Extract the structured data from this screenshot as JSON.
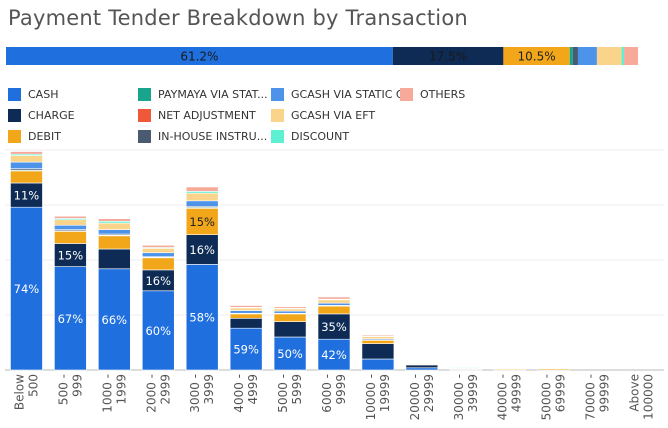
{
  "title": "Payment Tender Breakdown by Transaction",
  "colors": {
    "CASH": "#1f6fde",
    "CHARGE": "#0d2b55",
    "DEBIT": "#f2a71b",
    "PAYMAYA VIA STAT...": "#18a58c",
    "NET ADJUSTMENT": "#f0583a",
    "IN-HOUSE INSTRU...": "#4a5a70",
    "GCASH VIA STATIC QR": "#4e93ea",
    "GCASH VIA EFT": "#fad48a",
    "DISCOUNT": "#5ef0d2",
    "OTHERS": "#f7a99a"
  },
  "legend": {
    "columns": [
      [
        "CASH",
        "CHARGE",
        "DEBIT"
      ],
      [
        "PAYMAYA VIA STAT...",
        "NET ADJUSTMENT",
        "IN-HOUSE INSTRU..."
      ],
      [
        "GCASH VIA STATIC QR",
        "GCASH VIA EFT",
        "DISCOUNT"
      ],
      [
        "OTHERS"
      ]
    ]
  },
  "chart_data": [
    {
      "type": "bar",
      "orientation": "horizontal-stacked-100",
      "series": [
        {
          "name": "CASH",
          "value": 61.2,
          "label": "61.2%"
        },
        {
          "name": "CHARGE",
          "value": 17.5,
          "label": "17.5%"
        },
        {
          "name": "DEBIT",
          "value": 10.5,
          "label": "10.5%"
        },
        {
          "name": "PAYMAYA VIA STAT...",
          "value": 0.5,
          "label": ""
        },
        {
          "name": "IN-HOUSE INSTRU...",
          "value": 0.8,
          "label": ""
        },
        {
          "name": "GCASH VIA STATIC QR",
          "value": 3.0,
          "label": ""
        },
        {
          "name": "GCASH VIA EFT",
          "value": 3.9,
          "label": ""
        },
        {
          "name": "DISCOUNT",
          "value": 0.4,
          "label": ""
        },
        {
          "name": "OTHERS",
          "value": 2.2,
          "label": ""
        }
      ]
    },
    {
      "type": "bar",
      "stacked": true,
      "categories": [
        "Below 500",
        "500 - 999",
        "1000 - 1999",
        "2000 - 2999",
        "3000 - 3999",
        "4000 - 4999",
        "5000 - 5999",
        "6000 - 9999",
        "10000 - 19999",
        "20000 - 29999",
        "30000 - 39999",
        "40000 - 49999",
        "50000 - 69999",
        "70000 - 99999",
        "Above 100000"
      ],
      "tick_labels": [
        [
          "Below",
          "500"
        ],
        [
          "500 -",
          "999"
        ],
        [
          "1000 -",
          "1999"
        ],
        [
          "2000 -",
          "2999"
        ],
        [
          "3000 -",
          "3999"
        ],
        [
          "4000 -",
          "4999"
        ],
        [
          "5000 -",
          "5999"
        ],
        [
          "6000 -",
          "9999"
        ],
        [
          "10000 -",
          "19999"
        ],
        [
          "20000 -",
          "29999"
        ],
        [
          "30000 -",
          "39999"
        ],
        [
          "40000 -",
          "49999"
        ],
        [
          "50000 -",
          "69999"
        ],
        [
          "70000 -",
          "99999"
        ],
        [
          "Above",
          "100000"
        ]
      ],
      "ylim": [
        0,
        100
      ],
      "grid": true,
      "series": [
        {
          "name": "CASH",
          "values": [
            74,
            47,
            46,
            36,
            48,
            19,
            15,
            14,
            5,
            1,
            0,
            0,
            0,
            0,
            0
          ],
          "labels": [
            "74%",
            "67%",
            "66%",
            "60%",
            "58%",
            "59%",
            "50%",
            "42%",
            "",
            "",
            "",
            "",
            "",
            "",
            ""
          ]
        },
        {
          "name": "CHARGE",
          "values": [
            11,
            10.5,
            9,
            9.5,
            13.5,
            4.5,
            7,
            11.5,
            7,
            1.3,
            0.3,
            0,
            0,
            0,
            0
          ],
          "labels": [
            "11%",
            "15%",
            "",
            "16%",
            "16%",
            "",
            "",
            "35%",
            "",
            "",
            "",
            "",
            "",
            "",
            ""
          ]
        },
        {
          "name": "DEBIT",
          "values": [
            5.5,
            5.5,
            6,
            5.5,
            12,
            2,
            3.5,
            3.5,
            1.5,
            0.3,
            0.3,
            0.4,
            0.5,
            0,
            0
          ],
          "labels": [
            "",
            "",
            "",
            "",
            "15%",
            "",
            "",
            "",
            "",
            "",
            "",
            "",
            "",
            "",
            ""
          ]
        },
        {
          "name": "PAYMAYA VIA STAT...",
          "values": [
            0.4,
            0.3,
            0.3,
            0.2,
            0.4,
            0.1,
            0.1,
            0.1,
            0,
            0,
            0.3,
            0,
            0,
            0,
            0
          ],
          "labels": []
        },
        {
          "name": "IN-HOUSE INSTRU...",
          "values": [
            0.6,
            0.5,
            0.5,
            0.3,
            0.5,
            0.2,
            0.2,
            0.3,
            0.2,
            0.1,
            0,
            0,
            0,
            0,
            0
          ],
          "labels": []
        },
        {
          "name": "GCASH VIA STATIC QR",
          "values": [
            3,
            2,
            2,
            1.8,
            2.5,
            1.2,
            1,
            1,
            0.5,
            0,
            0,
            0,
            0,
            0,
            0
          ],
          "labels": []
        },
        {
          "name": "GCASH VIA EFT",
          "values": [
            3,
            2.5,
            3,
            2,
            3.5,
            1.2,
            1,
            1.5,
            1,
            0.2,
            0,
            0,
            0,
            0,
            0
          ],
          "labels": []
        },
        {
          "name": "DISCOUNT",
          "values": [
            0.6,
            0.6,
            0.8,
            0.4,
            0.8,
            0.3,
            0.3,
            0.3,
            0.2,
            0,
            0.3,
            0,
            0,
            0,
            0
          ],
          "labels": []
        },
        {
          "name": "OTHERS",
          "values": [
            1.2,
            1,
            1.2,
            1,
            2,
            0.8,
            0.7,
            1,
            0.5,
            0.2,
            0,
            0,
            0,
            0,
            0
          ],
          "labels": []
        }
      ]
    }
  ]
}
